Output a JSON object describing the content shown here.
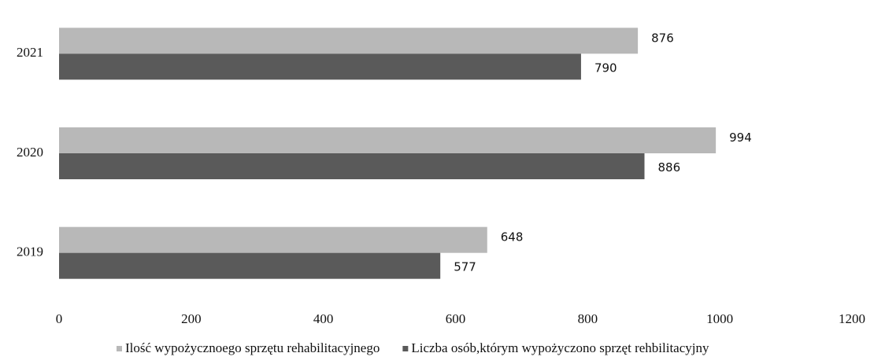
{
  "chart_data": {
    "type": "hbar",
    "categories": [
      "2019",
      "2020",
      "2021"
    ],
    "series": [
      {
        "name": "Ilość wypożycznoego sprzętu rehabilitacyjnego",
        "color": "#b8b8b8",
        "values": [
          648,
          994,
          876
        ]
      },
      {
        "name": "Liczba osób,którym wypożyczono sprzęt rehbilitacyjny",
        "color": "#5a5a5a",
        "values": [
          577,
          886,
          790
        ]
      }
    ],
    "xlim": [
      0,
      1200
    ],
    "xticks": [
      0,
      200,
      400,
      600,
      800,
      1000,
      1200
    ],
    "legend": "bottom",
    "grid": false
  }
}
